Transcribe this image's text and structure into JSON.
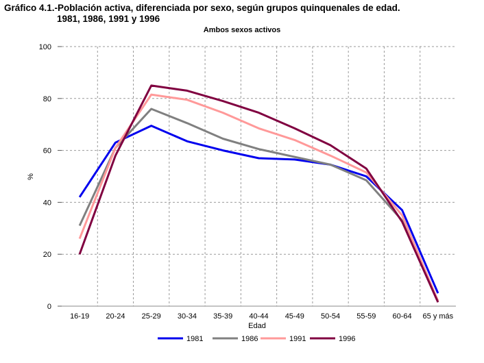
{
  "title_line1": "Gráfico 4.1.-Población activa, diferenciada por sexo, según grupos quinquenales de edad.",
  "title_line2": "1981, 1986, 1991 y 1996",
  "chart_data": {
    "type": "line",
    "subtitle": "Ambos sexos activos",
    "xlabel": "Edad",
    "ylabel": "%",
    "ylim": [
      0,
      100
    ],
    "yticks": [
      0,
      20,
      40,
      60,
      80,
      100
    ],
    "grid": true,
    "legend_position": "bottom",
    "categories": [
      "16-19",
      "20-24",
      "25-29",
      "30-34",
      "35-39",
      "40-44",
      "45-49",
      "50-54",
      "55-59",
      "60-64",
      "65 y más"
    ],
    "series": [
      {
        "name": "1981",
        "color": "#0000ee",
        "values": [
          42,
          63,
          69.5,
          63.5,
          60,
          57,
          56.5,
          54.5,
          50,
          37,
          5
        ]
      },
      {
        "name": "1986",
        "color": "#808080",
        "values": [
          31,
          61,
          76,
          70.5,
          64.5,
          60.5,
          57.5,
          54.5,
          48.5,
          33,
          2
        ]
      },
      {
        "name": "1991",
        "color": "#ff9999",
        "values": [
          26,
          61,
          81.5,
          79.5,
          74.5,
          68.5,
          64,
          58,
          51.5,
          35,
          2
        ]
      },
      {
        "name": "1996",
        "color": "#800040",
        "values": [
          20,
          58,
          85,
          83,
          79,
          74.5,
          68.5,
          62,
          53,
          32.5,
          1.5
        ]
      }
    ]
  }
}
